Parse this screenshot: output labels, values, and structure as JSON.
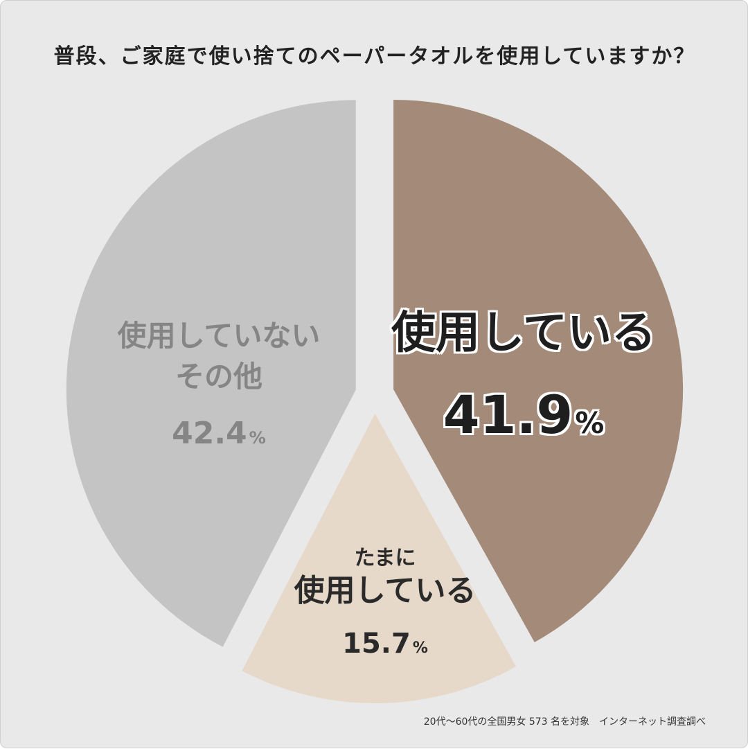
{
  "title": "普段、ご家庭で使い捨てのペーパータオルを使用していますか？",
  "source_note": "20代～60代の全国男女 573 名を対象　インターネット調査調べ",
  "chart_data": {
    "type": "pie",
    "title": "普段、ご家庭で使い捨てのペーパータオルを使用していますか？",
    "slices": [
      {
        "name": "使用している",
        "value": 41.9,
        "value_label": "41.9",
        "unit": "%",
        "color": "#a48b79"
      },
      {
        "name": "たまに使用している",
        "name_line1": "たまに",
        "name_line2": "使用している",
        "value": 15.7,
        "value_label": "15.7",
        "unit": "%",
        "color": "#e7d9c9"
      },
      {
        "name": "使用していない その他",
        "name_line1": "使用していない",
        "name_line2": "その他",
        "value": 42.4,
        "value_label": "42.4",
        "unit": "%",
        "color": "#c4c4c4"
      }
    ],
    "start_angle": "12 o'clock",
    "direction": "clockwise",
    "exploded": true
  }
}
